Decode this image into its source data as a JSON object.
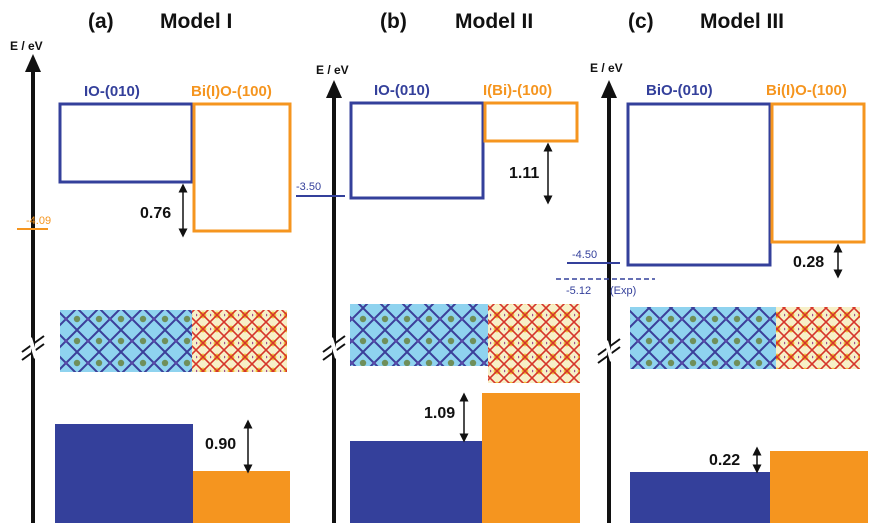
{
  "colors": {
    "blue": "#34409b",
    "orange": "#f5951f",
    "text": "#111111",
    "struct_blue_bg": "#8fd3ef",
    "struct_orange_bg": "#f7f0c8"
  },
  "axis_label": "E / eV",
  "panels": [
    {
      "id": "a",
      "label": "(a)",
      "title": "Model I",
      "left_box_label": "IO-(010)",
      "right_box_label": "Bi(I)O-(100)",
      "level_label": "-4.09",
      "upper_offset_label": "0.76",
      "lower_offset_label": "0.90"
    },
    {
      "id": "b",
      "label": "(b)",
      "title": "Model II",
      "left_box_label": "IO-(010)",
      "right_box_label": "I(Bi)-(100)",
      "level_label": "-3.50",
      "upper_offset_label": "1.11",
      "lower_offset_label": "1.09"
    },
    {
      "id": "c",
      "label": "(c)",
      "title": "Model III",
      "left_box_label": "BiO-(010)",
      "right_box_label": "Bi(I)O-(100)",
      "level_label": "-4.50",
      "level_label_2": "-5.12",
      "level_label_2_note": "(Exp)",
      "upper_offset_label": "0.28",
      "lower_offset_label": "0.22"
    }
  ]
}
